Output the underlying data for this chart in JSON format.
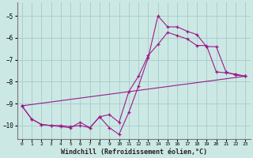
{
  "xlabel": "Windchill (Refroidissement éolien,°C)",
  "background_color": "#cce8e5",
  "grid_color": "#aad0cc",
  "line_color": "#9b1a8a",
  "xlim": [
    -0.5,
    23.5
  ],
  "ylim": [
    -10.6,
    -4.4
  ],
  "yticks": [
    -10,
    -9,
    -8,
    -7,
    -6,
    -5
  ],
  "xticks": [
    0,
    1,
    2,
    3,
    4,
    5,
    6,
    7,
    8,
    9,
    10,
    11,
    12,
    13,
    14,
    15,
    16,
    17,
    18,
    19,
    20,
    21,
    22,
    23
  ],
  "series": [
    {
      "x": [
        0,
        1,
        2,
        3,
        4,
        5,
        6,
        7,
        8,
        9,
        10,
        11,
        12,
        13,
        14,
        15,
        16,
        17,
        18,
        19,
        20,
        21,
        22,
        23
      ],
      "y": [
        -9.1,
        -9.7,
        -9.95,
        -10.0,
        -10.0,
        -10.05,
        -10.0,
        -10.1,
        -9.6,
        -10.1,
        -10.4,
        -9.4,
        -8.2,
        -6.9,
        -5.0,
        -5.5,
        -5.5,
        -5.7,
        -5.85,
        -6.4,
        -6.4,
        -7.55,
        -7.7,
        -7.75
      ]
    },
    {
      "x": [
        0,
        1,
        2,
        3,
        4,
        5,
        6,
        7,
        8,
        9,
        10,
        11,
        12,
        13,
        14,
        15,
        16,
        17,
        18,
        19,
        20,
        21,
        22,
        23
      ],
      "y": [
        -9.1,
        -9.7,
        -9.95,
        -10.0,
        -10.05,
        -10.1,
        -9.85,
        -10.1,
        -9.6,
        -9.5,
        -9.85,
        -8.45,
        -7.75,
        -6.8,
        -6.3,
        -5.75,
        -5.9,
        -6.05,
        -6.35,
        -6.35,
        -7.55,
        -7.6,
        -7.65,
        -7.75
      ]
    },
    {
      "x": [
        0,
        23
      ],
      "y": [
        -9.1,
        -7.75
      ]
    }
  ]
}
